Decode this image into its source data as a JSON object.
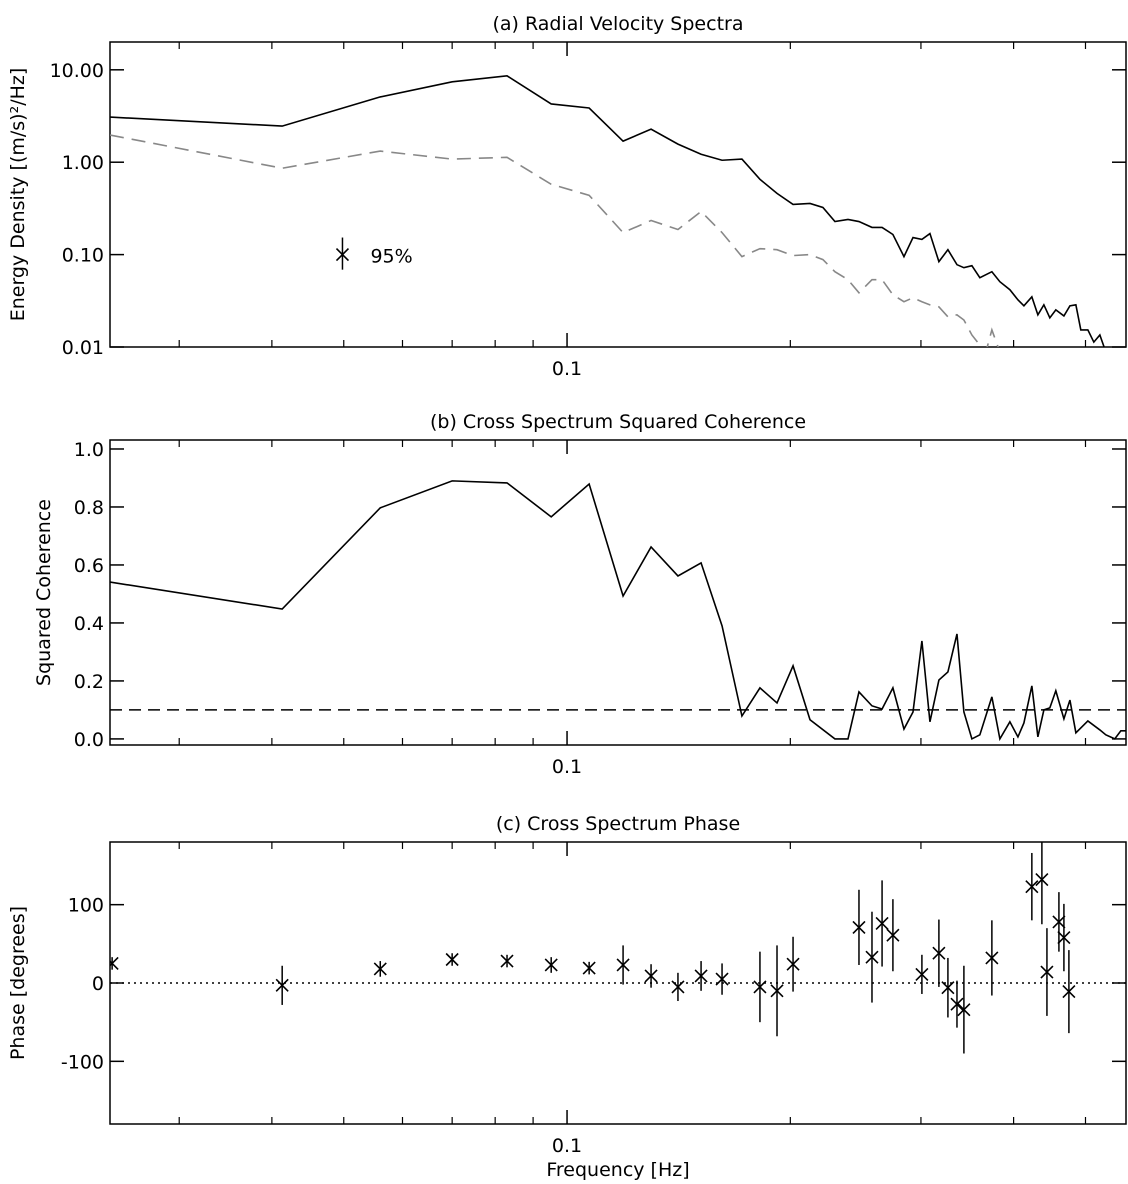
{
  "chart_data": [
    {
      "type": "line",
      "title": "(a) Radial Velocity Spectra",
      "ylabel": "Energy Density [(m/s)²/Hz]",
      "xlog": true,
      "ylog": true,
      "xlim": [
        0.0242,
        0.567
      ],
      "ylim": [
        0.01,
        20
      ],
      "xticks": [
        0.1
      ],
      "xminorticks": [
        0.03,
        0.04,
        0.05,
        0.06,
        0.07,
        0.08,
        0.09,
        0.2,
        0.3,
        0.4,
        0.5
      ],
      "yticks": [
        0.01,
        {
          "value": 0.1,
          "label": "0.10"
        },
        {
          "value": 1,
          "label": "1.00"
        },
        {
          "value": 10,
          "label": "10.00"
        }
      ],
      "series": [
        {
          "color": "#000000",
          "dash": false,
          "x": [
            0.0242,
            0.0413,
            0.056,
            0.07,
            0.083,
            0.0952,
            0.1071,
            0.119,
            0.1298,
            0.1411,
            0.1516,
            0.1618,
            0.1721,
            0.182,
            0.1919,
            0.2017,
            0.2126,
            0.2213,
            0.2297,
            0.2392,
            0.2475,
            0.2577,
            0.2659,
            0.275,
            0.2846,
            0.2927,
            0.3009,
            0.3085,
            0.3172,
            0.3262,
            0.3355,
            0.3428,
            0.3514,
            0.3602,
            0.3739,
            0.3833,
            0.3954,
            0.4054,
            0.413,
            0.4233,
            0.4313,
            0.4394,
            0.4476,
            0.456,
            0.4676,
            0.4764,
            0.4853,
            0.4928,
            0.5037,
            0.5131,
            0.5228,
            0.5326
          ],
          "values": [
            3.08,
            2.46,
            5.09,
            7.41,
            8.6,
            4.27,
            3.86,
            1.69,
            2.28,
            1.57,
            1.22,
            1.05,
            1.08,
            0.653,
            0.46,
            0.349,
            0.358,
            0.324,
            0.228,
            0.24,
            0.228,
            0.197,
            0.197,
            0.165,
            0.0951,
            0.153,
            0.146,
            0.169,
            0.0839,
            0.113,
            0.0778,
            0.0722,
            0.0759,
            0.0562,
            0.0653,
            0.0509,
            0.0417,
            0.0324,
            0.0279,
            0.0349,
            0.0223,
            0.0286,
            0.0207,
            0.0252,
            0.0217,
            0.0279,
            0.0286,
            0.0153,
            0.0153,
            0.0113,
            0.0135,
            0.00883
          ]
        },
        {
          "color": "#888888",
          "dash": true,
          "x": [
            0.0242,
            0.0413,
            0.056,
            0.07,
            0.083,
            0.0952,
            0.1071,
            0.119,
            0.1298,
            0.1411,
            0.1516,
            0.1618,
            0.1721,
            0.182,
            0.1919,
            0.2017,
            0.2126,
            0.2213,
            0.2297,
            0.2392,
            0.2475,
            0.2577,
            0.2659,
            0.275,
            0.2846,
            0.2927,
            0.3009,
            0.3085,
            0.3172,
            0.3262,
            0.3355,
            0.3428,
            0.3514,
            0.3602,
            0.367,
            0.3739,
            0.3833
          ],
          "values": [
            1.97,
            0.861,
            1.32,
            1.08,
            1.13,
            0.577,
            0.438,
            0.173,
            0.234,
            0.187,
            0.293,
            0.173,
            0.0951,
            0.116,
            0.113,
            0.0976,
            0.1,
            0.0883,
            0.0653,
            0.0535,
            0.0386,
            0.0535,
            0.0535,
            0.0367,
            0.0309,
            0.0341,
            0.0309,
            0.0286,
            0.0272,
            0.0212,
            0.0223,
            0.0196,
            0.0135,
            0.0105,
            0.00883,
            0.0153,
            0.00883
          ]
        }
      ],
      "annotation": {
        "x": 0.0498,
        "y": 0.1,
        "low": 0.0687,
        "high": 0.153,
        "text": "95%"
      }
    },
    {
      "type": "line",
      "title": "(b) Cross Spectrum Squared Coherence",
      "ylabel": "Squared Coherence",
      "xlog": true,
      "ylog": false,
      "xlim": [
        0.0242,
        0.567
      ],
      "ylim": [
        -0.021,
        1.031
      ],
      "xticks": [
        0.1
      ],
      "xminorticks": [
        0.03,
        0.04,
        0.05,
        0.06,
        0.07,
        0.08,
        0.09,
        0.2,
        0.3,
        0.4,
        0.5
      ],
      "yticks": [
        {
          "value": 0,
          "label": "0.0"
        },
        0.2,
        0.4,
        0.6,
        0.8,
        {
          "value": 1,
          "label": "1.0"
        }
      ],
      "threshold": 0.1,
      "series": [
        {
          "color": "#000000",
          "dash": false,
          "x": [
            0.0242,
            0.0413,
            0.056,
            0.07,
            0.083,
            0.0952,
            0.1071,
            0.119,
            0.1298,
            0.1411,
            0.1516,
            0.1618,
            0.1721,
            0.182,
            0.1919,
            0.2017,
            0.2126,
            0.2297,
            0.2392,
            0.2475,
            0.2577,
            0.2659,
            0.275,
            0.2846,
            0.2927,
            0.3009,
            0.3085,
            0.3172,
            0.3262,
            0.3355,
            0.3428,
            0.3514,
            0.3602,
            0.3739,
            0.3833,
            0.3954,
            0.4054,
            0.413,
            0.4233,
            0.4313,
            0.4394,
            0.4476,
            0.456,
            0.4676,
            0.4764,
            0.4853,
            0.5037,
            0.5228,
            0.5326,
            0.5476,
            0.558,
            0.567
          ],
          "values": [
            0.541,
            0.448,
            0.797,
            0.89,
            0.883,
            0.766,
            0.879,
            0.493,
            0.662,
            0.562,
            0.607,
            0.39,
            0.079,
            0.176,
            0.124,
            0.252,
            0.066,
            0.0,
            0.0,
            0.162,
            0.114,
            0.103,
            0.176,
            0.034,
            0.093,
            0.338,
            0.059,
            0.203,
            0.231,
            0.362,
            0.093,
            0.0,
            0.014,
            0.145,
            0.0,
            0.059,
            0.007,
            0.055,
            0.183,
            0.007,
            0.1,
            0.107,
            0.166,
            0.069,
            0.134,
            0.021,
            0.062,
            0.031,
            0.014,
            0.0,
            0.028,
            0.028
          ]
        }
      ]
    },
    {
      "type": "errorbar",
      "title": "(c) Cross Spectrum Phase",
      "ylabel": "Phase [degrees]",
      "xlabel": "Frequency [Hz]",
      "xlog": true,
      "ylog": false,
      "xlim": [
        0.0242,
        0.567
      ],
      "ylim": [
        -180,
        180
      ],
      "xticks": [
        0.1
      ],
      "xminorticks": [
        0.03,
        0.04,
        0.05,
        0.06,
        0.07,
        0.08,
        0.09,
        0.2,
        0.3,
        0.4,
        0.5
      ],
      "yticks": [
        -100,
        0,
        100
      ],
      "reference": 0,
      "x": [
        0.02436,
        0.0413,
        0.056,
        0.07,
        0.083,
        0.0952,
        0.1071,
        0.119,
        0.1298,
        0.1411,
        0.1516,
        0.1618,
        0.182,
        0.1919,
        0.2017,
        0.2475,
        0.2577,
        0.2659,
        0.275,
        0.3009,
        0.3172,
        0.3262,
        0.3355,
        0.3428,
        0.3739,
        0.4233,
        0.4367,
        0.4436,
        0.4604,
        0.4676,
        0.4749
      ],
      "values": [
        25,
        -3,
        18,
        30,
        28,
        23,
        19,
        23,
        9,
        -5,
        9,
        5,
        -5,
        -10,
        24,
        71,
        33,
        76,
        61,
        11,
        38,
        -6,
        -27,
        -34,
        32,
        123,
        132,
        14,
        78,
        58,
        -11
      ],
      "errors": [
        8,
        25,
        10,
        8,
        8,
        10,
        8,
        25,
        15,
        18,
        19,
        20,
        45,
        58,
        35,
        48,
        58,
        55,
        46,
        25,
        43,
        38,
        30,
        56,
        48,
        43,
        57,
        56,
        38,
        43,
        53
      ]
    }
  ]
}
